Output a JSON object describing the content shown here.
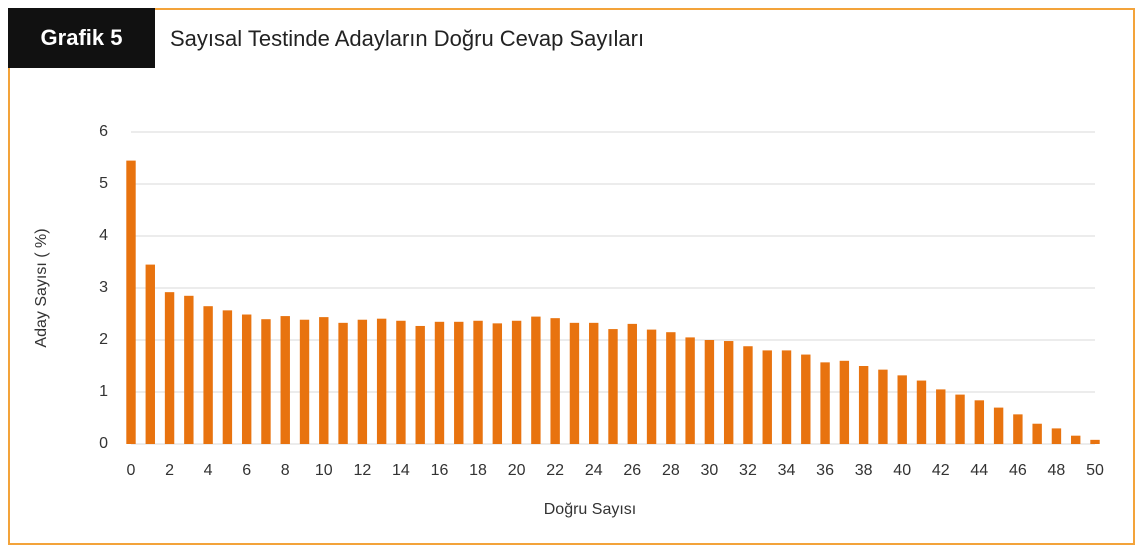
{
  "header": {
    "label": "Grafik 5",
    "title": "Sayısal Testinde Adayların Doğru Cevap Sayıları"
  },
  "chart_data": {
    "type": "bar",
    "x_label": "Doğru Sayısı",
    "y_label": "Aday Sayısı ( %)",
    "categories": [
      0,
      null,
      2,
      null,
      4,
      null,
      6,
      null,
      8,
      null,
      10,
      null,
      12,
      null,
      14,
      null,
      16,
      null,
      18,
      null,
      20,
      null,
      22,
      null,
      24,
      null,
      26,
      null,
      28,
      null,
      30,
      null,
      32,
      null,
      34,
      null,
      36,
      null,
      38,
      null,
      40,
      null,
      42,
      null,
      44,
      null,
      46,
      null,
      48,
      null,
      50
    ],
    "values": [
      5.45,
      3.45,
      2.92,
      2.85,
      2.65,
      2.57,
      2.49,
      2.4,
      2.46,
      2.39,
      2.44,
      2.33,
      2.39,
      2.41,
      2.37,
      2.27,
      2.35,
      2.35,
      2.37,
      2.32,
      2.37,
      2.45,
      2.42,
      2.33,
      2.33,
      2.21,
      2.31,
      2.2,
      2.15,
      2.05,
      2.0,
      1.98,
      1.88,
      1.8,
      1.8,
      1.72,
      1.57,
      1.6,
      1.5,
      1.43,
      1.32,
      1.22,
      1.05,
      0.95,
      0.84,
      0.7,
      0.57,
      0.39,
      0.3,
      0.16,
      0.08
    ],
    "color": "#e8730f",
    "ylim": [
      0,
      6
    ],
    "yticks": [
      0,
      1,
      2,
      3,
      4,
      5,
      6
    ],
    "grid": true
  }
}
